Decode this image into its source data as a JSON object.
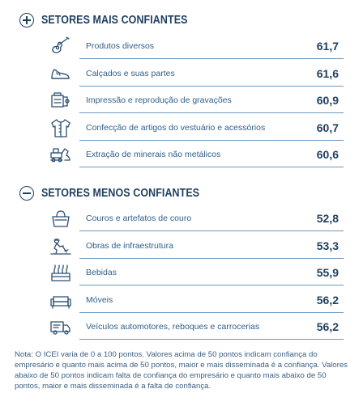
{
  "chart_data": [
    {
      "type": "table",
      "title": "SETORES MAIS CONFIANTES",
      "categories": [
        "Produtos diversos",
        "Calçados e suas partes",
        "Impressão e reprodução de gravações",
        "Confecção de artigos do vestuário e acessórios",
        "Extração de minerais não metálicos"
      ],
      "values": [
        61.7,
        61.6,
        60.9,
        60.7,
        60.6
      ],
      "value_labels": [
        "61,7",
        "61,6",
        "60,9",
        "60,7",
        "60,6"
      ],
      "icons": [
        "guitar-icon",
        "shoe-icon",
        "printer-roll-icon",
        "shirt-icon",
        "excavator-icon"
      ]
    },
    {
      "type": "table",
      "title": "SETORES MENOS CONFIANTES",
      "categories": [
        "Couros e artefatos de couro",
        "Obras de infraestrutura",
        "Bebidas",
        "Móveis",
        "Veículos automotores, reboques e carrocerias"
      ],
      "values": [
        52.8,
        53.3,
        55.9,
        56.2,
        56.2
      ],
      "value_labels": [
        "52,8",
        "53,3",
        "55,9",
        "56,2",
        "56,2"
      ],
      "icons": [
        "handbag-icon",
        "construction-worker-icon",
        "bottles-icon",
        "sofa-icon",
        "truck-icon"
      ]
    }
  ],
  "note": "Nota: O ICEI varia de 0 a 100 pontos. Valores acima de 50 pontos indicam confiança do empresário e quanto mais acima de 50 pontos, maior e mais disseminada é a confiança. Valores abaixo de 50 pontos indicam falta de confiança do empresário e quanto mais abaixo de 50 pontos, maior e mais disseminada é a falta de confiança.",
  "colors": {
    "title": "#1f3f5f",
    "label": "#2f5f8a",
    "rule": "#6f98c4",
    "icon": "#2b4f73"
  }
}
